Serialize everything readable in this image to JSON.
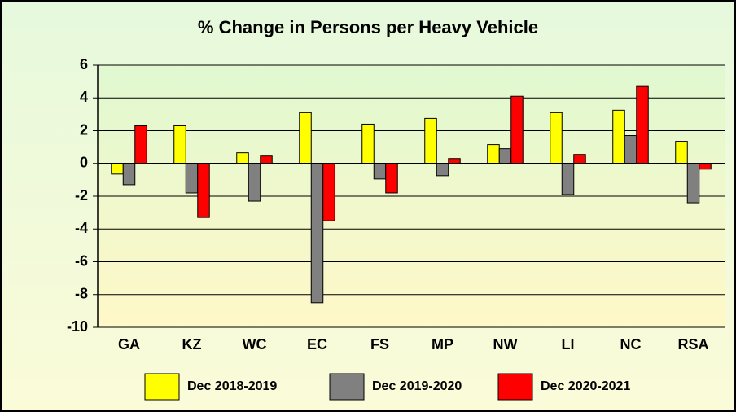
{
  "chart_data": {
    "type": "bar",
    "title": "% Change in Persons per Heavy Vehicle",
    "categories": [
      "GA",
      "KZ",
      "WC",
      "EC",
      "FS",
      "MP",
      "NW",
      "LI",
      "NC",
      "RSA"
    ],
    "series": [
      {
        "name": "Dec 2018-2019",
        "color": "#ffff00",
        "values": [
          -0.65,
          2.3,
          0.65,
          3.1,
          2.4,
          2.75,
          1.15,
          3.1,
          3.25,
          1.35
        ]
      },
      {
        "name": "Dec 2019-2020",
        "color": "#808080",
        "values": [
          -1.3,
          -1.8,
          -2.3,
          -8.5,
          -0.95,
          -0.75,
          0.9,
          -1.9,
          1.7,
          -2.4
        ]
      },
      {
        "name": "Dec 2020-2021",
        "color": "#ff0000",
        "values": [
          2.3,
          -3.3,
          0.45,
          -3.5,
          -1.8,
          0.3,
          4.1,
          0.55,
          4.7,
          -0.35
        ]
      }
    ],
    "ylim": [
      -10,
      6
    ],
    "yticks": [
      -10,
      -8,
      -6,
      -4,
      -2,
      0,
      2,
      4,
      6
    ],
    "grid": true,
    "legend": "bottom"
  }
}
